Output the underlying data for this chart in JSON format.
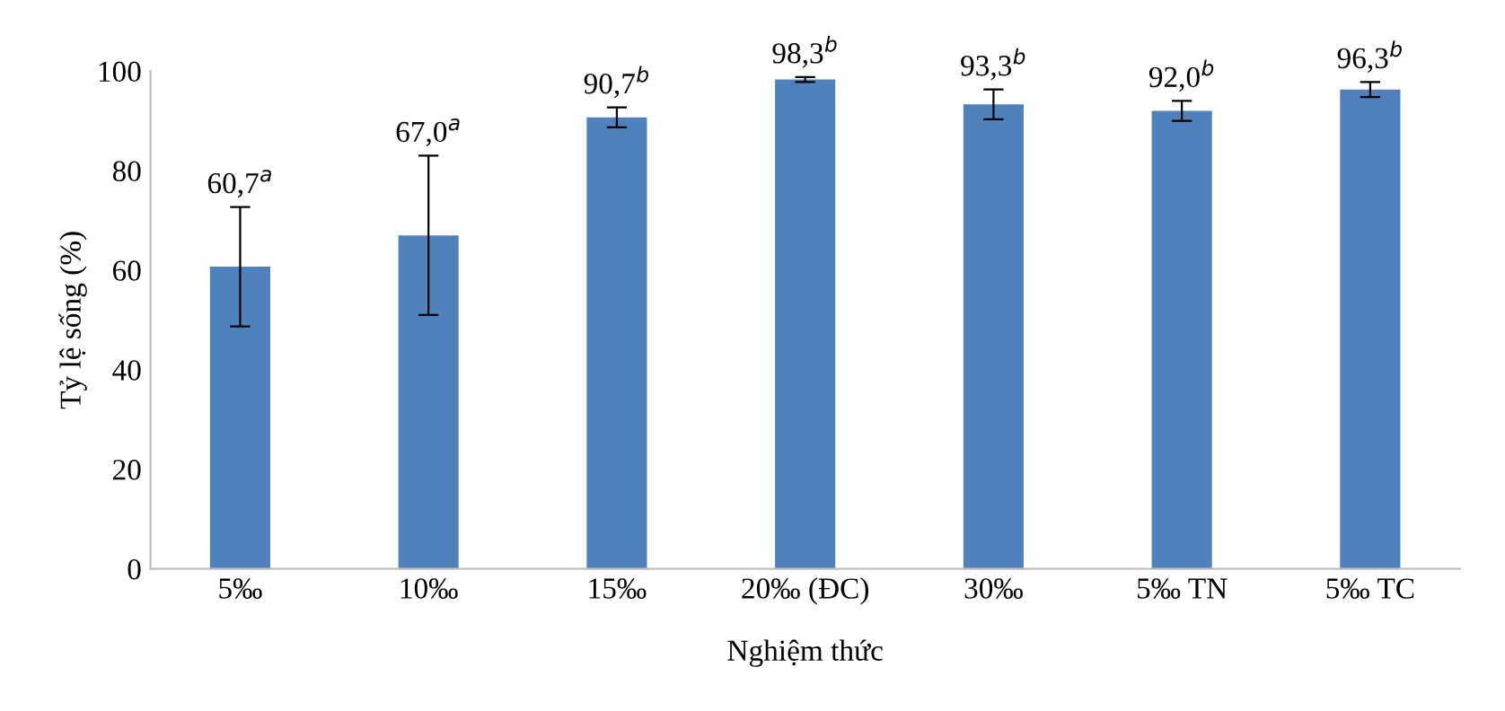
{
  "chart_data": {
    "type": "bar",
    "xlabel": "Nghiệm thức",
    "ylabel": "Tỷ lệ sống (%)",
    "categories": [
      "5‰",
      "10‰",
      "15‰",
      "20‰ (ĐC)",
      "30‰",
      "5‰ TN",
      "5‰ TC"
    ],
    "values": [
      60.7,
      67.0,
      90.7,
      98.3,
      93.3,
      92.0,
      96.3
    ],
    "errors": [
      12,
      16,
      2,
      0.5,
      3,
      2,
      1.5
    ],
    "value_labels": [
      "60,7$^{a}$",
      "67,0$^{a}$",
      "90,7$^{b}$",
      "98,3$^{b}$",
      "93,3$^{b}$",
      "92,0$^{b}$",
      "96,3$^{b}$"
    ],
    "color": "#4f81bd",
    "ylim": [
      0,
      100
    ],
    "yticks": [
      0,
      20,
      40,
      60,
      80,
      100
    ],
    "grid": false,
    "legend": false
  }
}
